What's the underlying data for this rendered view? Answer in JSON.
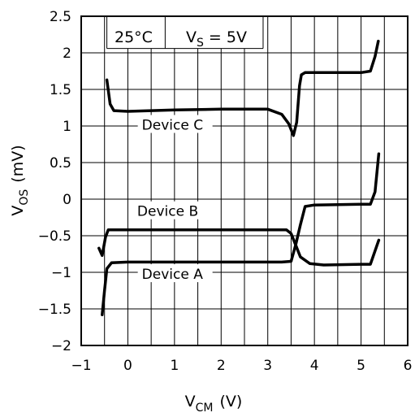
{
  "chart_data": {
    "type": "line",
    "xlabel": {
      "main": "V",
      "sub": "CM",
      "unit": "(V)"
    },
    "ylabel": {
      "main": "V",
      "sub": "OS",
      "unit": "(mV)"
    },
    "xlim": [
      -1,
      6
    ],
    "ylim": [
      -2,
      2.5
    ],
    "xticks": [
      -1,
      0,
      1,
      2,
      3,
      4,
      5,
      6
    ],
    "yticks": [
      -2,
      -1.5,
      -1,
      -0.5,
      0,
      0.5,
      1,
      1.5,
      2,
      2.5
    ],
    "xgrid_step": 0.5,
    "grid": true,
    "annotations": {
      "temperature": "25°C",
      "supply": {
        "main": "V",
        "sub": "S",
        "rest": " = 5V"
      }
    },
    "series": [
      {
        "name": "Device A",
        "x": [
          -0.55,
          -0.5,
          -0.45,
          -0.35,
          0,
          1,
          2,
          3,
          3.3,
          3.5,
          3.6,
          3.7,
          3.8,
          4,
          5,
          5.2,
          5.3,
          5.38
        ],
        "y": [
          -1.58,
          -1.25,
          -0.95,
          -0.87,
          -0.86,
          -0.86,
          -0.86,
          -0.86,
          -0.86,
          -0.85,
          -0.62,
          -0.35,
          -0.1,
          -0.08,
          -0.07,
          -0.07,
          0.1,
          0.62
        ]
      },
      {
        "name": "Device B",
        "x": [
          -0.62,
          -0.55,
          -0.48,
          -0.42,
          0,
          1,
          2,
          3,
          3.4,
          3.5,
          3.6,
          3.7,
          3.9,
          4.2,
          5,
          5.2,
          5.38
        ],
        "y": [
          -0.67,
          -0.77,
          -0.52,
          -0.42,
          -0.42,
          -0.42,
          -0.42,
          -0.42,
          -0.42,
          -0.47,
          -0.63,
          -0.79,
          -0.88,
          -0.9,
          -0.89,
          -0.89,
          -0.56
        ]
      },
      {
        "name": "Device C",
        "x": [
          -0.45,
          -0.38,
          -0.3,
          0,
          1,
          2,
          3,
          3.3,
          3.45,
          3.55,
          3.62,
          3.68,
          3.72,
          3.8,
          4,
          5,
          5.2,
          5.3,
          5.37
        ],
        "y": [
          1.63,
          1.3,
          1.21,
          1.2,
          1.22,
          1.23,
          1.23,
          1.16,
          1.03,
          0.87,
          1.05,
          1.55,
          1.7,
          1.73,
          1.73,
          1.73,
          1.75,
          1.95,
          2.16
        ]
      }
    ],
    "labels": [
      {
        "text": "Device C",
        "x": 0.3,
        "y": 0.95
      },
      {
        "text": "Device B",
        "x": 0.2,
        "y": -0.23
      },
      {
        "text": "Device A",
        "x": 0.3,
        "y": -1.09
      }
    ]
  }
}
